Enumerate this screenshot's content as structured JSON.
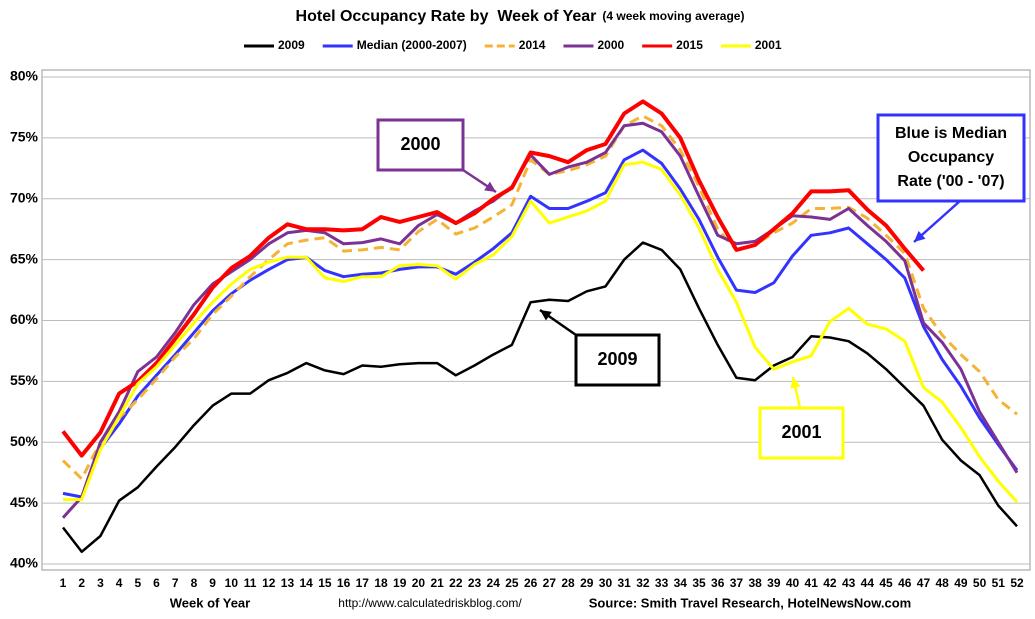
{
  "chart_data": {
    "type": "line",
    "title": "Hotel Occupancy Rate by  Week of Year",
    "subtitle": "(4 week moving average)",
    "x_label": "Week of Year",
    "url": "http://www.calculatedriskblog.com/",
    "source": "Source: Smith Travel Research, HotelNewsNow.com",
    "legend": "top",
    "grid": true,
    "categories": [
      1,
      2,
      3,
      4,
      5,
      6,
      7,
      8,
      9,
      10,
      11,
      12,
      13,
      14,
      15,
      16,
      17,
      18,
      19,
      20,
      21,
      22,
      23,
      24,
      25,
      26,
      27,
      28,
      29,
      30,
      31,
      32,
      33,
      34,
      35,
      36,
      37,
      38,
      39,
      40,
      41,
      42,
      43,
      44,
      45,
      46,
      47,
      48,
      49,
      50,
      51,
      52
    ],
    "ylim": [
      40,
      80
    ],
    "yticks": [
      {
        "value": 40,
        "label": "40%"
      },
      {
        "value": 45,
        "label": "45%"
      },
      {
        "value": 50,
        "label": "50%"
      },
      {
        "value": 55,
        "label": "55%"
      },
      {
        "value": 60,
        "label": "60%"
      },
      {
        "value": 65,
        "label": "65%"
      },
      {
        "value": 70,
        "label": "70%"
      },
      {
        "value": 75,
        "label": "75%"
      },
      {
        "value": 80,
        "label": "80%"
      }
    ],
    "series": [
      {
        "name": "2009",
        "color": "#000000",
        "values": [
          43,
          41,
          42.3,
          45.2,
          46.3,
          48,
          49.6,
          51.4,
          53,
          54,
          54,
          55.1,
          55.7,
          56.5,
          55.9,
          55.6,
          56.3,
          56.2,
          56.4,
          56.5,
          56.5,
          55.5,
          56.3,
          57.2,
          58,
          61.5,
          61.7,
          61.6,
          62.4,
          62.8,
          65,
          66.4,
          65.8,
          64.2,
          61,
          58,
          55.3,
          55.1,
          56.3,
          57,
          58.7,
          58.6,
          58.3,
          57.3,
          56,
          54.5,
          53,
          50.2,
          48.5,
          47.3,
          44.8,
          43.1
        ]
      },
      {
        "name": "Median (2000-2007)",
        "color": "#3333ff",
        "values": [
          45.8,
          45.5,
          49.5,
          51.5,
          53.8,
          55.5,
          57.2,
          59,
          60.8,
          62.2,
          63.3,
          64.2,
          65,
          65.2,
          64.1,
          63.6,
          63.8,
          63.9,
          64.2,
          64.4,
          64.4,
          63.8,
          64.8,
          65.9,
          67.2,
          70.2,
          69.2,
          69.2,
          69.8,
          70.5,
          73.2,
          74,
          72.9,
          70.8,
          68.3,
          65.2,
          62.5,
          62.3,
          63.1,
          65.3,
          67,
          67.2,
          67.6,
          66.3,
          65,
          63.5,
          59.5,
          56.8,
          54.6,
          52,
          49.8,
          47.7
        ]
      },
      {
        "name": "2014",
        "color": "#f5b335",
        "dashed": true,
        "values": [
          48.5,
          47,
          50,
          52,
          53.5,
          55.2,
          57,
          58.5,
          60.5,
          62,
          63.6,
          65,
          66.3,
          66.6,
          66.8,
          65.7,
          65.8,
          66,
          65.8,
          67.3,
          68.3,
          67.1,
          67.6,
          68.5,
          69.5,
          73.2,
          72,
          72.3,
          72.8,
          73.5,
          76,
          76.8,
          76,
          74,
          71,
          67.5,
          65.8,
          66.2,
          67.2,
          68,
          69.2,
          69.2,
          69.3,
          68.4,
          67,
          65.5,
          61,
          58.8,
          57.2,
          55.8,
          53.5,
          52.3
        ]
      },
      {
        "name": "2000",
        "color": "#7b3294",
        "values": [
          43.8,
          45.5,
          50,
          52.5,
          55.8,
          57,
          59,
          61.3,
          63,
          64,
          65,
          66.3,
          67.2,
          67.4,
          67.2,
          66.3,
          66.4,
          66.7,
          66.3,
          67.8,
          68.7,
          68,
          69,
          69.8,
          71,
          73.6,
          72,
          72.6,
          73,
          73.8,
          76,
          76.2,
          75.5,
          73.5,
          70.2,
          67,
          66.3,
          66.5,
          67.5,
          68.6,
          68.5,
          68.3,
          69.2,
          67.8,
          66.5,
          64.9,
          59.8,
          58.2,
          56,
          52.5,
          50,
          47.5
        ]
      },
      {
        "name": "2015",
        "color": "#ff0000",
        "values": [
          50.9,
          48.9,
          50.8,
          54,
          55,
          56.5,
          58.5,
          60.5,
          62.7,
          64.3,
          65.3,
          66.8,
          67.9,
          67.5,
          67.5,
          67.4,
          67.5,
          68.5,
          68.1,
          68.5,
          68.9,
          68,
          68.8,
          70,
          70.9,
          73.8,
          73.5,
          73,
          74,
          74.5,
          77,
          78,
          77,
          75,
          71.5,
          68.5,
          65.8,
          66.2,
          67.5,
          68.8,
          70.6,
          70.6,
          70.7,
          69.1,
          67.8,
          65.9,
          64.1,
          null,
          null,
          null,
          null,
          null
        ]
      },
      {
        "name": "2001",
        "color": "#ffff00",
        "values": [
          45.3,
          45.3,
          49.4,
          52.1,
          54.8,
          56.2,
          58,
          59.8,
          61.5,
          63,
          64.2,
          64.8,
          65.2,
          65.2,
          63.5,
          63.2,
          63.6,
          63.6,
          64.5,
          64.6,
          64.5,
          63.4,
          64.6,
          65.4,
          66.9,
          69.8,
          68,
          68.5,
          69,
          69.8,
          72.8,
          73,
          72.4,
          70.3,
          67.6,
          64.2,
          61.5,
          57.8,
          56,
          56.6,
          57.1,
          59.9,
          61,
          59.7,
          59.3,
          58.3,
          54.5,
          53.3,
          51.2,
          48.8,
          46.8,
          45.1
        ]
      }
    ],
    "annotations": [
      {
        "lines": [
          "2000"
        ],
        "color": "#7b3294"
      },
      {
        "lines": [
          "2009"
        ],
        "color": "#000000"
      },
      {
        "lines": [
          "2001"
        ],
        "color": "#ffff00"
      },
      {
        "lines": [
          "Blue is Median",
          "Occupancy",
          "Rate ('00 - '07)"
        ],
        "color": "#3333ff"
      }
    ]
  }
}
